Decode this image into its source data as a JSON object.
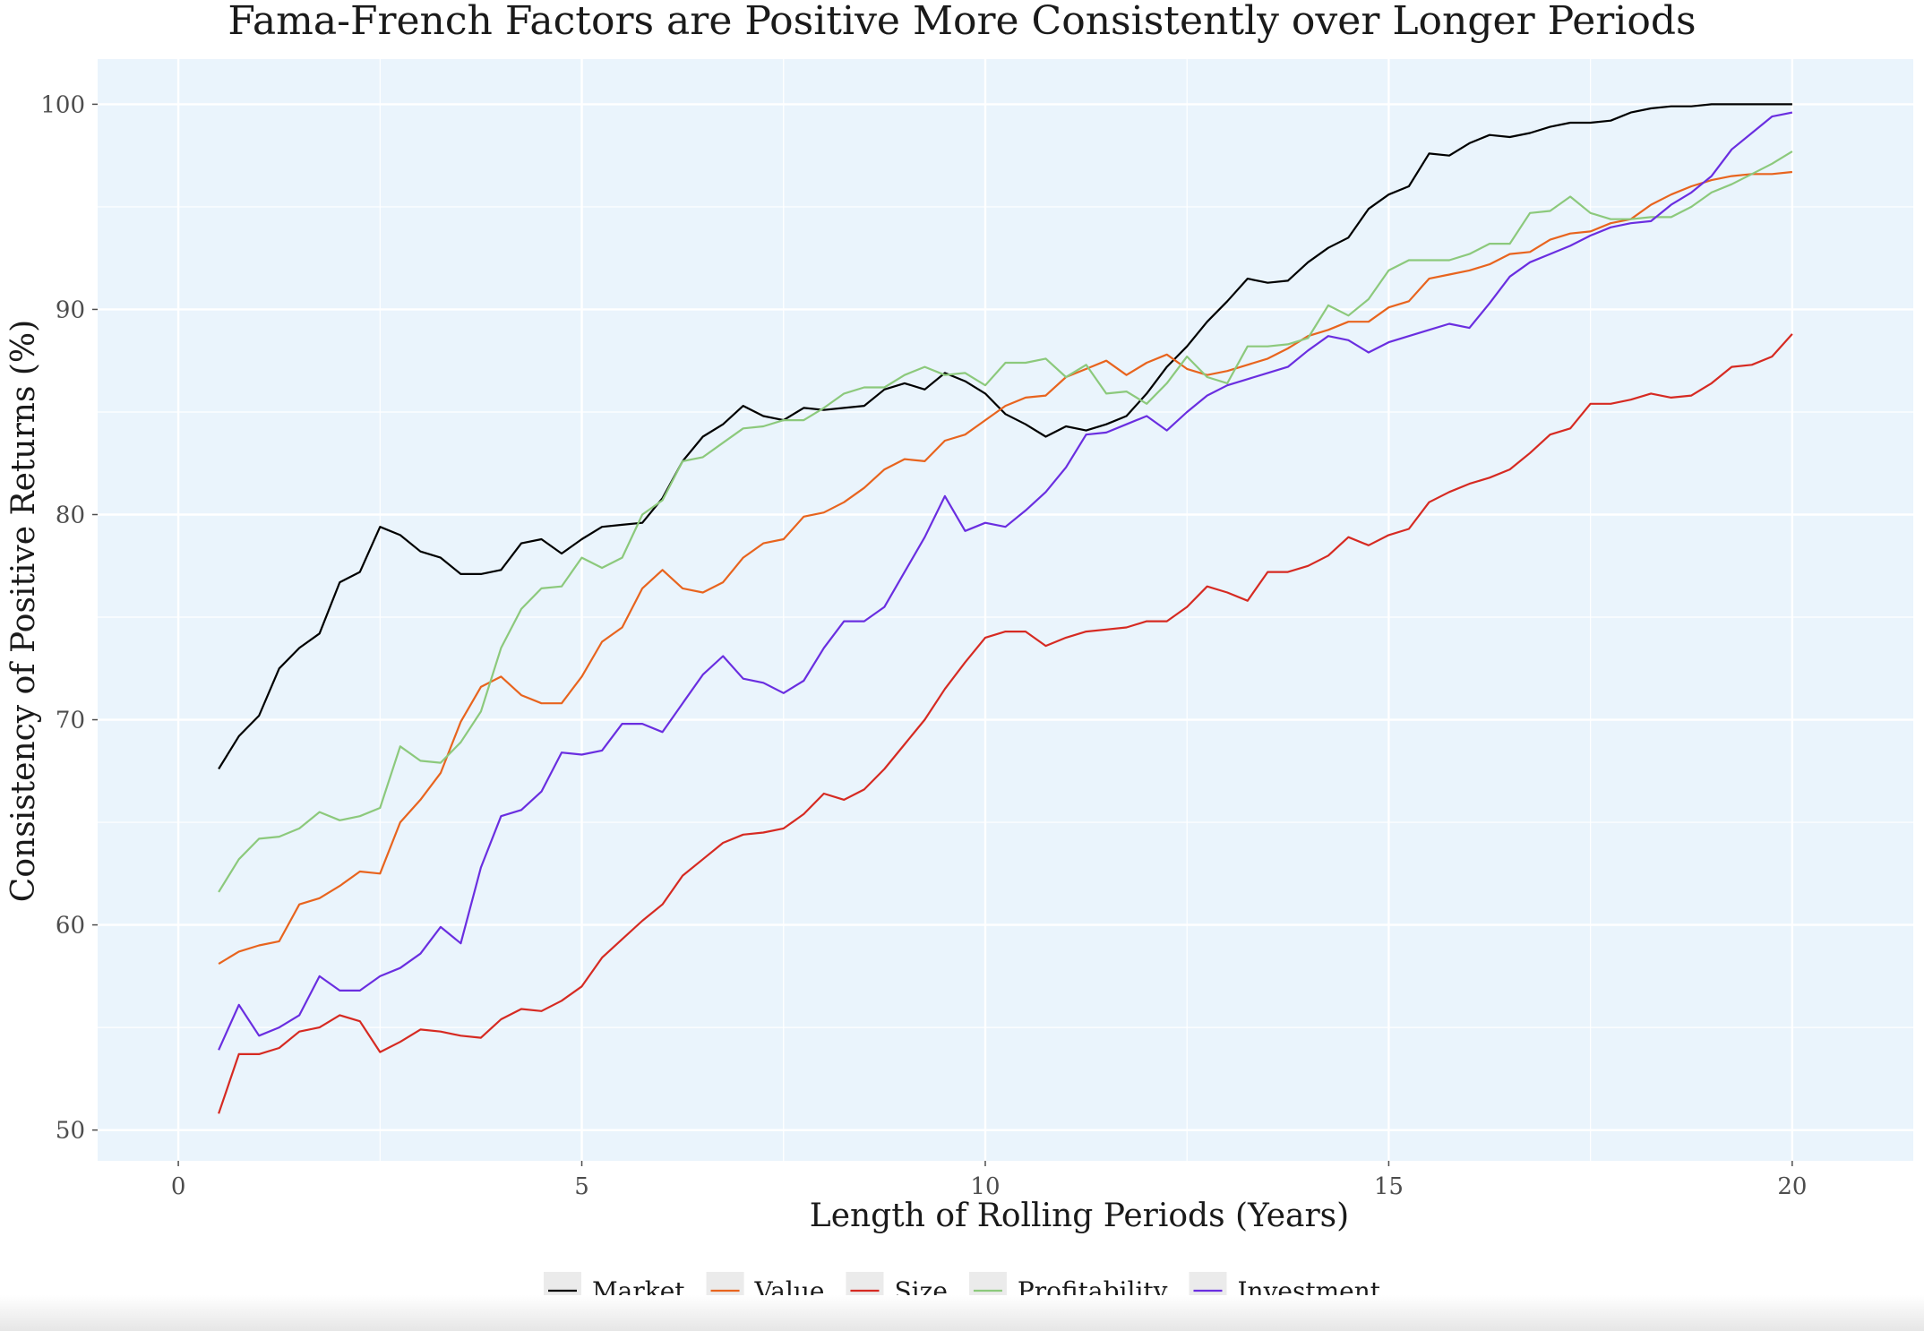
{
  "chart_data": {
    "type": "line",
    "title": "Fama-French Factors are Positive More Consistently over Longer Periods",
    "xlabel": "Length of Rolling Periods (Years)",
    "ylabel": "Consistency of Positive Returns (%)",
    "xlim": [
      -1,
      21.5
    ],
    "ylim": [
      48.5,
      102.2
    ],
    "xticks": [
      0,
      5,
      10,
      15,
      20
    ],
    "yticks": [
      50,
      60,
      70,
      80,
      90,
      100
    ],
    "grid": true,
    "legend_position": "bottom",
    "background": "#eaf4fc",
    "x": [
      0.5,
      0.75,
      1,
      1.25,
      1.5,
      1.75,
      2,
      2.25,
      2.5,
      2.75,
      3,
      3.25,
      3.5,
      3.75,
      4,
      4.25,
      4.5,
      4.75,
      5,
      5.25,
      5.5,
      5.75,
      6,
      6.25,
      6.5,
      6.75,
      7,
      7.25,
      7.5,
      7.75,
      8,
      8.25,
      8.5,
      8.75,
      9,
      9.25,
      9.5,
      9.75,
      10,
      10.25,
      10.5,
      10.75,
      11,
      11.25,
      11.5,
      11.75,
      12,
      12.25,
      12.5,
      12.75,
      13,
      13.25,
      13.5,
      13.75,
      14,
      14.25,
      14.5,
      14.75,
      15,
      15.25,
      15.5,
      15.75,
      16,
      16.25,
      16.5,
      16.75,
      17,
      17.25,
      17.5,
      17.75,
      18,
      18.25,
      18.5,
      18.75,
      19,
      19.25,
      19.5,
      19.75,
      20
    ],
    "series": [
      {
        "name": "Market",
        "color": "#000000",
        "values": [
          67.6,
          69.2,
          70.2,
          72.5,
          73.5,
          74.2,
          76.7,
          77.2,
          79.4,
          79.0,
          78.2,
          77.9,
          77.1,
          77.1,
          77.3,
          78.6,
          78.8,
          78.1,
          78.8,
          79.4,
          79.5,
          79.6,
          80.8,
          82.6,
          83.8,
          84.4,
          85.3,
          84.8,
          84.6,
          85.2,
          85.1,
          85.2,
          85.3,
          86.1,
          86.4,
          86.1,
          86.9,
          86.5,
          85.9,
          84.9,
          84.4,
          83.8,
          84.3,
          84.1,
          84.4,
          84.8,
          85.9,
          87.2,
          88.2,
          89.4,
          90.4,
          91.5,
          91.3,
          91.4,
          92.3,
          93.0,
          93.5,
          94.9,
          95.6,
          96.0,
          97.6,
          97.5,
          98.1,
          98.5,
          98.4,
          98.6,
          98.9,
          99.1,
          99.1,
          99.2,
          99.6,
          99.8,
          99.9,
          99.9,
          100.0,
          100.0,
          100.0,
          100.0,
          100.0
        ]
      },
      {
        "name": "Value",
        "color": "#e8641e",
        "values": [
          58.1,
          58.7,
          59.0,
          59.2,
          61.0,
          61.3,
          61.9,
          62.6,
          62.5,
          65.0,
          66.1,
          67.4,
          69.9,
          71.6,
          72.1,
          71.2,
          70.8,
          70.8,
          72.1,
          73.8,
          74.5,
          76.4,
          77.3,
          76.4,
          76.2,
          76.7,
          77.9,
          78.6,
          78.8,
          79.9,
          80.1,
          80.6,
          81.3,
          82.2,
          82.7,
          82.6,
          83.6,
          83.9,
          84.6,
          85.3,
          85.7,
          85.8,
          86.7,
          87.1,
          87.5,
          86.8,
          87.4,
          87.8,
          87.1,
          86.8,
          87.0,
          87.3,
          87.6,
          88.1,
          88.7,
          89.0,
          89.4,
          89.4,
          90.1,
          90.4,
          91.5,
          91.7,
          91.9,
          92.2,
          92.7,
          92.8,
          93.4,
          93.7,
          93.8,
          94.2,
          94.4,
          95.1,
          95.6,
          96.0,
          96.3,
          96.5,
          96.6,
          96.6,
          96.7
        ]
      },
      {
        "name": "Size",
        "color": "#d62a22",
        "values": [
          50.8,
          53.7,
          53.7,
          54.0,
          54.8,
          55.0,
          55.6,
          55.3,
          53.8,
          54.3,
          54.9,
          54.8,
          54.6,
          54.5,
          55.4,
          55.9,
          55.8,
          56.3,
          57.0,
          58.4,
          59.3,
          60.2,
          61.0,
          62.4,
          63.2,
          64.0,
          64.4,
          64.5,
          64.7,
          65.4,
          66.4,
          66.1,
          66.6,
          67.6,
          68.8,
          70.0,
          71.5,
          72.8,
          74.0,
          74.3,
          74.3,
          73.6,
          74.0,
          74.3,
          74.4,
          74.5,
          74.8,
          74.8,
          75.5,
          76.5,
          76.2,
          75.8,
          77.2,
          77.2,
          77.5,
          78.0,
          78.9,
          78.5,
          79.0,
          79.3,
          80.6,
          81.1,
          81.5,
          81.8,
          82.2,
          83.0,
          83.9,
          84.2,
          85.4,
          85.4,
          85.6,
          85.9,
          85.7,
          85.8,
          86.4,
          87.2,
          87.3,
          87.7,
          88.8
        ]
      },
      {
        "name": "Profitability",
        "color": "#8cc97c",
        "values": [
          61.6,
          63.2,
          64.2,
          64.3,
          64.7,
          65.5,
          65.1,
          65.3,
          65.7,
          68.7,
          68.0,
          67.9,
          68.9,
          70.4,
          73.5,
          75.4,
          76.4,
          76.5,
          77.9,
          77.4,
          77.9,
          80.0,
          80.7,
          82.6,
          82.8,
          83.5,
          84.2,
          84.3,
          84.6,
          84.6,
          85.2,
          85.9,
          86.2,
          86.2,
          86.8,
          87.2,
          86.8,
          86.9,
          86.3,
          87.4,
          87.4,
          87.6,
          86.7,
          87.3,
          85.9,
          86.0,
          85.4,
          86.4,
          87.7,
          86.7,
          86.4,
          88.2,
          88.2,
          88.3,
          88.6,
          90.2,
          89.7,
          90.5,
          91.9,
          92.4,
          92.4,
          92.4,
          92.7,
          93.2,
          93.2,
          94.7,
          94.8,
          95.5,
          94.7,
          94.4,
          94.4,
          94.5,
          94.5,
          95.0,
          95.7,
          96.1,
          96.6,
          97.1,
          97.7
        ]
      },
      {
        "name": "Investment",
        "color": "#6a2ee0",
        "values": [
          53.9,
          56.1,
          54.6,
          55.0,
          55.6,
          57.5,
          56.8,
          56.8,
          57.5,
          57.9,
          58.6,
          59.9,
          59.1,
          62.8,
          65.3,
          65.6,
          66.5,
          68.4,
          68.3,
          68.5,
          69.8,
          69.8,
          69.4,
          70.8,
          72.2,
          73.1,
          72.0,
          71.8,
          71.3,
          71.9,
          73.5,
          74.8,
          74.8,
          75.5,
          77.2,
          78.9,
          80.9,
          79.2,
          79.6,
          79.4,
          80.2,
          81.1,
          82.3,
          83.9,
          84.0,
          84.4,
          84.8,
          84.1,
          85.0,
          85.8,
          86.3,
          86.6,
          86.9,
          87.2,
          88.0,
          88.7,
          88.5,
          87.9,
          88.4,
          88.7,
          89.0,
          89.3,
          89.1,
          90.3,
          91.6,
          92.3,
          92.7,
          93.1,
          93.6,
          94.0,
          94.2,
          94.3,
          95.1,
          95.7,
          96.5,
          97.8,
          98.6,
          99.4,
          99.6
        ]
      }
    ]
  }
}
